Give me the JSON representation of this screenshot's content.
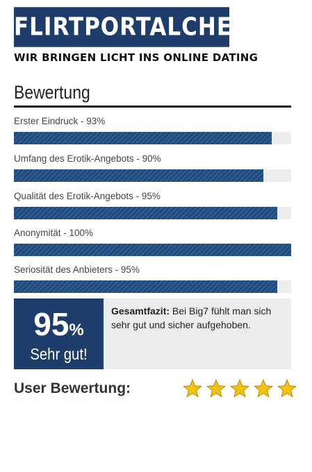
{
  "brand": {
    "logo_text": "FLIRTPORTALCHECK",
    "tagline": "WIR BRINGEN LICHT INS ONLINE DATING"
  },
  "section": {
    "title": "Bewertung"
  },
  "ratings": [
    {
      "label": "Erster Eindruck - 93%",
      "value": 93
    },
    {
      "label": "Umfang des Erotik-Angebots - 90%",
      "value": 90
    },
    {
      "label": "Qualität des Erotik-Angebots - 95%",
      "value": 95
    },
    {
      "label": "Anonymität - 100%",
      "value": 100
    },
    {
      "label": "Seriosität des Anbieters - 95%",
      "value": 95
    }
  ],
  "summary": {
    "score_number": "95",
    "score_percent": "%",
    "score_label": "Sehr gut!",
    "verdict_title": "Gesamtfazit:",
    "verdict_text": " Bei Big7 fühlt man sich sehr gut und sicher aufgehoben."
  },
  "user_rating": {
    "label": "User Bewertung:",
    "stars": 5,
    "max_stars": 5
  },
  "colors": {
    "brand_blue": "#1f3d6b",
    "bar_blue": "#2a5a8f",
    "star_gold": "#f2c40f"
  },
  "icons": {
    "star": "star-icon"
  }
}
